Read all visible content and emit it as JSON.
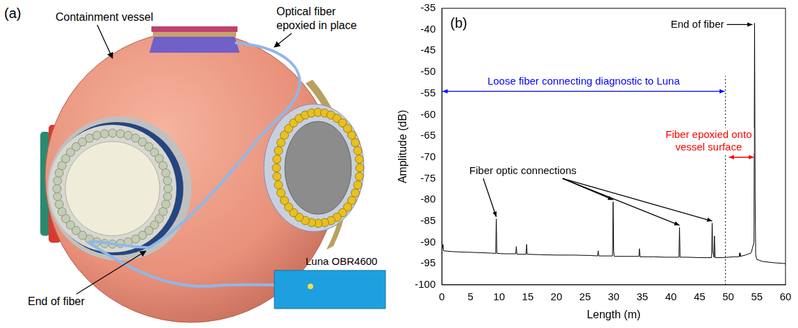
{
  "chart_data": {
    "type": "line",
    "panel_label": "(b)",
    "xlabel": "Length (m)",
    "ylabel": "Amplitude (dB)",
    "xlim": [
      0,
      60
    ],
    "xticks": [
      0,
      5,
      10,
      15,
      20,
      25,
      30,
      35,
      40,
      45,
      50,
      55,
      60
    ],
    "ylim": [
      -100,
      -35
    ],
    "yticks": [
      -100,
      -95,
      -90,
      -85,
      -80,
      -75,
      -70,
      -65,
      -60,
      -55,
      -50,
      -45,
      -40,
      -35
    ],
    "grid": false,
    "color": "#000000",
    "marker": "none",
    "line_style": "solid",
    "x": [
      0,
      0.2,
      0.3,
      2,
      4,
      6,
      8,
      9.4,
      9.5,
      9.6,
      11,
      12.9,
      13,
      13.1,
      14.7,
      14.8,
      14.9,
      17,
      20,
      23,
      26,
      27.2,
      27.3,
      27.4,
      28.5,
      29.8,
      29.9,
      30.0,
      30.1,
      32,
      34.4,
      34.5,
      34.6,
      37,
      39,
      41.4,
      41.5,
      41.6,
      43,
      45,
      47.1,
      47.2,
      47.3,
      47.5,
      47.6,
      47.7,
      49,
      51,
      51.9,
      52,
      52.1,
      53,
      54,
      54.5,
      54.6,
      54.7,
      54.8,
      55,
      56,
      58,
      60
    ],
    "values": [
      -92,
      -90.5,
      -92,
      -92.2,
      -92.3,
      -92.4,
      -92.5,
      -92.6,
      -84.5,
      -92.6,
      -92.7,
      -92.7,
      -91,
      -92.8,
      -92.8,
      -90.5,
      -92.8,
      -92.9,
      -93,
      -93,
      -93.1,
      -93.2,
      -92,
      -93.2,
      -93.2,
      -93.2,
      -80.5,
      -92,
      -93.3,
      -93.3,
      -93.3,
      -91.5,
      -93.4,
      -93.4,
      -93.5,
      -93.5,
      -86.5,
      -93.5,
      -93.5,
      -93.6,
      -93.6,
      -85.5,
      -92,
      -93.5,
      -88.5,
      -93.6,
      -93.6,
      -93.4,
      -93.4,
      -92.5,
      -93.3,
      -93,
      -92.5,
      -90,
      -38.5,
      -80,
      -93,
      -94,
      -94.5,
      -94.8,
      -95
    ],
    "annotations": [
      {
        "text": "End of fiber",
        "points_to_x": [
          54.6
        ]
      },
      {
        "text": "Loose fiber connecting diagnostic to Luna",
        "span": [
          0,
          49.5
        ],
        "y": -54.5,
        "color": "#0000ff"
      },
      {
        "text": "Fiber epoxied onto vessel surface",
        "span": [
          50,
          54.6
        ],
        "y": -70,
        "color": "#ff0000"
      },
      {
        "text": "Fiber optic connections",
        "points_to_x": [
          9.5,
          29.9,
          41.5,
          47.2
        ]
      },
      {
        "vline": 49.5,
        "line_style": "dotted"
      }
    ]
  },
  "diagram": {
    "panel_label": "(a)",
    "labels": {
      "vessel": "Containment vessel",
      "fiber": "Optical fiber epoxied in place",
      "end": "End of fiber",
      "instrument": "Luna OBR4600"
    }
  }
}
